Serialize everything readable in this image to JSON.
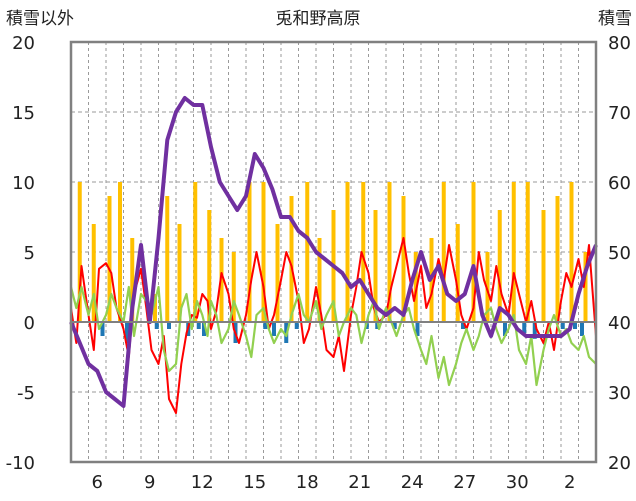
{
  "chart_data": {
    "type": "line",
    "title": "兎和野高原",
    "ylabel_left": "積雪以外",
    "ylabel_right": "積雪",
    "ylim_left": [
      -10,
      20
    ],
    "ylim_right": [
      20,
      80
    ],
    "yticks_left": [
      "20",
      "15",
      "10",
      "5",
      "0",
      "-5",
      "-10"
    ],
    "yticks_right": [
      "80",
      "70",
      "60",
      "50",
      "40",
      "30",
      "20"
    ],
    "xticks": [
      "6",
      "9",
      "12",
      "15",
      "18",
      "21",
      "24",
      "27",
      "30",
      "2"
    ],
    "x_range_days": [
      0,
      30
    ],
    "colors": {
      "temperature": "#ff0000",
      "sunshine": "#ffc000",
      "precipitation": "#1f77b4",
      "wind": "#92d050",
      "snow_depth": "#7030a0",
      "frame": "#808080",
      "grid": "#9a9a9a"
    },
    "series": [
      {
        "name": "temperature",
        "axis": "left",
        "x": [
          0,
          0.3,
          0.6,
          1.0,
          1.3,
          1.6,
          2.0,
          2.3,
          2.6,
          3.0,
          3.3,
          3.6,
          4.0,
          4.3,
          4.6,
          5.0,
          5.3,
          5.6,
          6.0,
          6.3,
          6.6,
          6.9,
          7.2,
          7.5,
          7.8,
          8.0,
          8.3,
          8.6,
          9.0,
          9.3,
          9.6,
          10.0,
          10.3,
          10.6,
          11.0,
          11.3,
          11.6,
          12.0,
          12.3,
          12.6,
          13.0,
          13.3,
          13.6,
          14.0,
          14.3,
          14.6,
          15.0,
          15.3,
          15.6,
          16.0,
          16.3,
          16.6,
          17.0,
          17.3,
          17.6,
          18.0,
          18.3,
          18.6,
          19.0,
          19.3,
          19.6,
          20.0,
          20.3,
          20.6,
          21.0,
          21.3,
          21.6,
          22.0,
          22.3,
          22.6,
          23.0,
          23.3,
          23.6,
          24.0,
          24.3,
          24.6,
          25.0,
          25.3,
          25.6,
          26.0,
          26.3,
          26.6,
          27.0,
          27.3,
          27.6,
          28.0,
          28.3,
          28.6,
          29.0,
          29.3,
          29.6,
          30.0
        ],
        "values": [
          1.0,
          -1.5,
          4.0,
          0.5,
          -2.0,
          3.8,
          4.2,
          3.5,
          1.0,
          -0.5,
          -2.5,
          2.0,
          3.8,
          1.0,
          -2.0,
          -3.0,
          -1.0,
          -5.5,
          -6.5,
          -3.0,
          -0.8,
          0.5,
          0.3,
          2.0,
          1.5,
          -0.5,
          0.8,
          3.5,
          2.0,
          -0.5,
          -1.5,
          0.5,
          3.0,
          5.0,
          2.5,
          -0.5,
          0.5,
          3.0,
          5.0,
          4.0,
          1.5,
          -1.5,
          -0.5,
          2.5,
          0.5,
          -2.0,
          -2.5,
          -1.0,
          -3.5,
          0.5,
          2.5,
          5.0,
          3.5,
          1.0,
          0.0,
          0.5,
          2.5,
          4.0,
          6.0,
          3.5,
          1.5,
          4.0,
          1.0,
          2.0,
          4.5,
          3.0,
          5.5,
          3.0,
          0.5,
          -0.5,
          1.0,
          5.0,
          3.0,
          1.5,
          4.0,
          2.0,
          0.5,
          3.5,
          2.0,
          0.0,
          1.5,
          -0.5,
          -1.5,
          0.0,
          -2.0,
          1.5,
          3.5,
          2.5,
          4.5,
          2.5,
          5.5,
          -1.0
        ]
      },
      {
        "name": "wind",
        "axis": "left",
        "x": [
          0,
          0.3,
          0.6,
          1.0,
          1.3,
          1.6,
          2.0,
          2.3,
          2.6,
          3.0,
          3.3,
          3.6,
          4.0,
          4.3,
          4.6,
          5.0,
          5.3,
          5.6,
          6.0,
          6.3,
          6.6,
          6.9,
          7.2,
          7.5,
          7.8,
          8.0,
          8.3,
          8.6,
          9.0,
          9.3,
          9.6,
          10.0,
          10.3,
          10.6,
          11.0,
          11.3,
          11.6,
          12.0,
          12.3,
          12.6,
          13.0,
          13.3,
          13.6,
          14.0,
          14.3,
          14.6,
          15.0,
          15.3,
          15.6,
          16.0,
          16.3,
          16.6,
          17.0,
          17.3,
          17.6,
          18.0,
          18.3,
          18.6,
          19.0,
          19.3,
          19.6,
          20.0,
          20.3,
          20.6,
          21.0,
          21.3,
          21.6,
          22.0,
          22.3,
          22.6,
          23.0,
          23.3,
          23.6,
          24.0,
          24.3,
          24.6,
          25.0,
          25.3,
          25.6,
          26.0,
          26.3,
          26.6,
          27.0,
          27.3,
          27.6,
          28.0,
          28.3,
          28.6,
          29.0,
          29.3,
          29.6,
          30.0
        ],
        "values": [
          2.5,
          1.0,
          2.5,
          0.5,
          2.0,
          -0.5,
          0.5,
          2.0,
          1.0,
          0.0,
          2.5,
          -1.0,
          2.0,
          1.5,
          0.5,
          2.5,
          -2.0,
          -3.5,
          -3.0,
          1.0,
          2.0,
          -0.5,
          1.5,
          0.5,
          -1.0,
          1.5,
          0.5,
          -1.5,
          -0.5,
          1.5,
          0.5,
          -1.0,
          -2.5,
          0.5,
          1.0,
          -0.5,
          -1.5,
          -0.5,
          -1.0,
          0.5,
          2.0,
          0.5,
          0.0,
          1.5,
          -0.5,
          0.5,
          1.5,
          -1.0,
          0.0,
          1.0,
          0.5,
          -1.5,
          0.5,
          1.5,
          -0.5,
          1.0,
          0.0,
          -1.0,
          0.5,
          1.0,
          -0.5,
          -2.0,
          -3.0,
          -1.0,
          -4.0,
          -2.5,
          -4.5,
          -3.0,
          -1.5,
          -0.5,
          -2.0,
          -1.0,
          0.5,
          1.0,
          -0.5,
          -1.5,
          -0.5,
          0.5,
          -2.0,
          -3.0,
          -1.0,
          -4.5,
          -2.0,
          -0.5,
          0.5,
          -1.0,
          -0.5,
          -1.5,
          -2.0,
          -1.0,
          -2.5,
          -3.0
        ]
      },
      {
        "name": "snow_depth",
        "axis": "right",
        "x": [
          0,
          0.5,
          1.0,
          1.5,
          2.0,
          2.5,
          3.0,
          3.5,
          4.0,
          4.5,
          5.0,
          5.5,
          6.0,
          6.5,
          7.0,
          7.5,
          8.0,
          8.5,
          9.0,
          9.5,
          10.0,
          10.5,
          11.0,
          11.5,
          12.0,
          12.5,
          13.0,
          13.5,
          14.0,
          14.5,
          15.0,
          15.5,
          16.0,
          16.5,
          17.0,
          17.5,
          18.0,
          18.5,
          19.0,
          19.5,
          20.0,
          20.5,
          21.0,
          21.5,
          22.0,
          22.5,
          23.0,
          23.5,
          24.0,
          24.5,
          25.0,
          25.5,
          26.0,
          26.5,
          27.0,
          27.5,
          28.0,
          28.5,
          29.0,
          29.5,
          30.0
        ],
        "values": [
          40,
          37,
          34,
          33,
          30,
          29,
          28,
          42,
          51,
          40,
          52,
          66,
          70,
          72,
          71,
          71,
          65,
          60,
          58,
          56,
          58,
          64,
          62,
          59,
          55,
          55,
          53,
          52,
          50,
          49,
          48,
          47,
          45,
          46,
          44,
          42,
          41,
          42,
          41,
          46,
          50,
          46,
          48,
          44,
          43,
          44,
          48,
          41,
          38,
          42,
          41,
          39,
          38,
          38,
          38,
          38,
          38,
          39,
          44,
          48,
          51
        ]
      }
    ],
    "bars": [
      {
        "name": "sunshine",
        "axis": "left",
        "x": [
          0.5,
          1.3,
          2.2,
          2.8,
          3.5,
          4.8,
          5.5,
          6.2,
          7.1,
          7.9,
          8.6,
          9.3,
          10.2,
          11.0,
          11.8,
          12.6,
          13.5,
          14.2,
          15.0,
          15.8,
          16.7,
          17.4,
          18.2,
          19.0,
          19.7,
          20.6,
          21.3,
          22.1,
          23.0,
          23.8,
          24.5,
          25.3,
          26.1,
          27.0,
          27.8,
          28.6,
          29.4
        ],
        "values": [
          10,
          7,
          9,
          10,
          6,
          2,
          9,
          7,
          10,
          8,
          6,
          5,
          10,
          10,
          7,
          9,
          10,
          6,
          8,
          10,
          10,
          8,
          10,
          9,
          5,
          6,
          10,
          7,
          10,
          5,
          8,
          10,
          10,
          8,
          9,
          10,
          5
        ]
      },
      {
        "name": "precipitation",
        "axis": "left",
        "x": [
          1.8,
          3.2,
          4.9,
          5.6,
          6.7,
          7.3,
          7.6,
          9.4,
          11.1,
          11.6,
          12.3,
          12.9,
          16.9,
          17.5,
          18.5,
          19.8,
          22.4,
          24.8,
          25.9,
          26.5,
          28.1,
          28.8,
          29.2
        ],
        "values": [
          -1.0,
          -1.5,
          -0.5,
          -0.5,
          -1.0,
          -0.5,
          -1.0,
          -1.5,
          -0.5,
          -1.0,
          -1.5,
          -0.5,
          -0.5,
          -0.5,
          -0.5,
          -1.0,
          -0.5,
          -1.0,
          -0.8,
          -1.2,
          -0.5,
          -0.5,
          -1.0
        ]
      }
    ]
  }
}
